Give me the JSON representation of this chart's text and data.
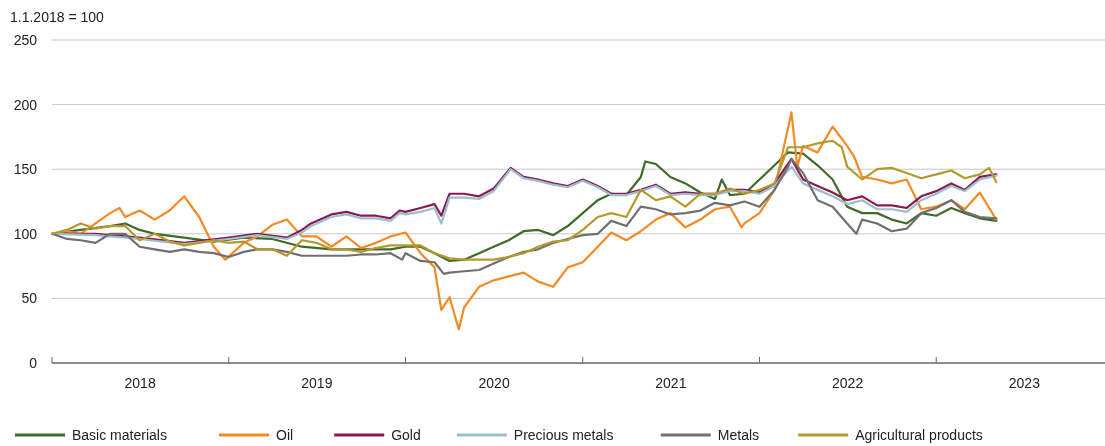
{
  "chart_data": {
    "type": "line",
    "ylabel": "1.1.2018 = 100",
    "xlim": [
      "2018-01-01",
      "2024-01-01"
    ],
    "ylim": [
      0,
      250
    ],
    "yticks": [
      0,
      50,
      100,
      150,
      200,
      250
    ],
    "xticks": [
      {
        "value": "2018-01-01",
        "label": null
      },
      {
        "value": "2018-07-02",
        "label": "2018"
      },
      {
        "value": "2019-01-01",
        "label": null
      },
      {
        "value": "2019-07-02",
        "label": "2019"
      },
      {
        "value": "2020-01-01",
        "label": null
      },
      {
        "value": "2020-07-02",
        "label": "2020"
      },
      {
        "value": "2021-01-01",
        "label": null
      },
      {
        "value": "2021-07-02",
        "label": "2021"
      },
      {
        "value": "2022-01-01",
        "label": null
      },
      {
        "value": "2022-07-02",
        "label": "2022"
      },
      {
        "value": "2023-01-01",
        "label": null
      },
      {
        "value": "2023-07-02",
        "label": "2023"
      },
      {
        "value": "2024-01-01",
        "label": null
      }
    ],
    "grid": "y",
    "legend": "bottom",
    "line_style": "solid",
    "marker": "none",
    "series": [
      {
        "name": "Basic materials",
        "color": "#3f6b2a",
        "x": [
          "2018-01-01",
          "2018-03-01",
          "2018-05-01",
          "2018-06-01",
          "2018-07-01",
          "2018-08-01",
          "2018-10-01",
          "2018-12-01",
          "2019-02-01",
          "2019-04-01",
          "2019-06-01",
          "2019-08-01",
          "2019-10-01",
          "2019-12-01",
          "2020-01-01",
          "2020-02-01",
          "2020-03-01",
          "2020-04-01",
          "2020-05-01",
          "2020-06-01",
          "2020-07-01",
          "2020-08-01",
          "2020-09-01",
          "2020-10-01",
          "2020-11-01",
          "2020-12-01",
          "2021-01-01",
          "2021-02-01",
          "2021-03-01",
          "2021-04-01",
          "2021-05-01",
          "2021-05-10",
          "2021-06-01",
          "2021-07-01",
          "2021-08-01",
          "2021-09-01",
          "2021-10-01",
          "2021-10-15",
          "2021-11-01",
          "2021-12-01",
          "2022-01-01",
          "2022-02-01",
          "2022-03-01",
          "2022-04-01",
          "2022-05-01",
          "2022-06-01",
          "2022-07-01",
          "2022-08-01",
          "2022-09-01",
          "2022-10-01",
          "2022-11-01",
          "2022-12-01",
          "2023-01-01",
          "2023-02-01",
          "2023-03-01",
          "2023-04-01",
          "2023-05-05"
        ],
        "values": [
          100,
          103,
          106,
          108,
          103,
          100,
          97,
          94,
          97,
          96,
          90,
          88,
          88,
          88,
          90,
          90,
          85,
          79,
          80,
          85,
          90,
          95,
          102,
          103,
          99,
          106,
          116,
          126,
          131,
          130,
          144,
          156,
          154,
          144,
          139,
          132,
          127,
          142,
          130,
          131,
          142,
          153,
          163,
          162,
          153,
          142,
          121,
          116,
          116,
          111,
          108,
          116,
          114,
          120,
          116,
          112,
          110
        ]
      },
      {
        "name": "Oil",
        "color": "#f58a25",
        "x": [
          "2018-01-01",
          "2018-02-01",
          "2018-03-01",
          "2018-04-01",
          "2018-05-01",
          "2018-05-20",
          "2018-06-01",
          "2018-07-01",
          "2018-08-01",
          "2018-09-01",
          "2018-10-01",
          "2018-11-01",
          "2018-12-01",
          "2018-12-25",
          "2019-02-01",
          "2019-03-01",
          "2019-04-01",
          "2019-05-01",
          "2019-06-01",
          "2019-07-01",
          "2019-08-01",
          "2019-09-01",
          "2019-10-01",
          "2019-11-01",
          "2019-12-01",
          "2020-01-01",
          "2020-02-01",
          "2020-03-01",
          "2020-03-15",
          "2020-04-01",
          "2020-04-20",
          "2020-05-01",
          "2020-06-01",
          "2020-07-01",
          "2020-08-01",
          "2020-09-01",
          "2020-10-01",
          "2020-11-01",
          "2020-12-01",
          "2021-01-01",
          "2021-02-01",
          "2021-03-01",
          "2021-04-01",
          "2021-05-01",
          "2021-06-01",
          "2021-07-01",
          "2021-08-01",
          "2021-09-01",
          "2021-10-01",
          "2021-11-01",
          "2021-11-25",
          "2021-12-01",
          "2022-01-01",
          "2022-02-01",
          "2022-03-08",
          "2022-03-20",
          "2022-04-01",
          "2022-05-01",
          "2022-06-01",
          "2022-07-01",
          "2022-07-15",
          "2022-08-01",
          "2022-09-01",
          "2022-10-01",
          "2022-11-01",
          "2022-12-01",
          "2023-01-01",
          "2023-02-01",
          "2023-03-01",
          "2023-04-01",
          "2023-05-05"
        ],
        "values": [
          100,
          102,
          100,
          108,
          116,
          120,
          113,
          118,
          111,
          118,
          129,
          113,
          90,
          80,
          93,
          98,
          107,
          111,
          98,
          98,
          90,
          98,
          89,
          93,
          98,
          101,
          85,
          74,
          41,
          51,
          26,
          43,
          59,
          64,
          67,
          70,
          63,
          59,
          74,
          78,
          90,
          101,
          95,
          102,
          111,
          116,
          105,
          111,
          119,
          121,
          105,
          108,
          116,
          134,
          194,
          152,
          168,
          163,
          183,
          168,
          160,
          144,
          142,
          139,
          142,
          119,
          121,
          126,
          119,
          132,
          111
        ]
      },
      {
        "name": "Gold",
        "color": "#8b1a4f",
        "x": [
          "2018-01-01",
          "2018-04-01",
          "2018-07-01",
          "2018-10-01",
          "2019-01-01",
          "2019-03-01",
          "2019-05-01",
          "2019-06-01",
          "2019-06-20",
          "2019-08-01",
          "2019-09-01",
          "2019-10-01",
          "2019-11-01",
          "2019-12-01",
          "2019-12-20",
          "2020-01-01",
          "2020-02-01",
          "2020-03-01",
          "2020-03-15",
          "2020-04-01",
          "2020-05-01",
          "2020-06-01",
          "2020-07-01",
          "2020-08-05",
          "2020-09-01",
          "2020-10-01",
          "2020-11-01",
          "2020-12-01",
          "2021-01-01",
          "2021-02-01",
          "2021-03-01",
          "2021-04-01",
          "2021-05-01",
          "2021-06-01",
          "2021-07-01",
          "2021-08-01",
          "2021-09-01",
          "2021-10-01",
          "2021-11-01",
          "2021-12-01",
          "2022-01-01",
          "2022-02-01",
          "2022-03-08",
          "2022-04-01",
          "2022-05-01",
          "2022-06-01",
          "2022-07-01",
          "2022-08-01",
          "2022-09-01",
          "2022-10-01",
          "2022-11-01",
          "2022-12-01",
          "2023-01-01",
          "2023-02-01",
          "2023-03-01",
          "2023-04-01",
          "2023-05-05"
        ],
        "values": [
          100,
          100,
          97,
          93,
          97,
          100,
          97,
          103,
          108,
          115,
          117,
          114,
          114,
          112,
          118,
          117,
          120,
          123,
          114,
          131,
          131,
          129,
          135,
          151,
          144,
          142,
          139,
          137,
          142,
          137,
          131,
          131,
          134,
          138,
          131,
          132,
          131,
          131,
          134,
          134,
          132,
          139,
          158,
          142,
          137,
          132,
          126,
          129,
          122,
          122,
          120,
          129,
          133,
          139,
          134,
          144,
          146
        ]
      },
      {
        "name": "Precious metals",
        "color": "#9bbfcc",
        "x": [
          "2018-01-01",
          "2018-04-01",
          "2018-07-01",
          "2018-10-01",
          "2019-01-01",
          "2019-03-01",
          "2019-05-01",
          "2019-06-01",
          "2019-06-20",
          "2019-08-01",
          "2019-09-01",
          "2019-10-01",
          "2019-11-01",
          "2019-12-01",
          "2019-12-20",
          "2020-01-01",
          "2020-02-01",
          "2020-03-01",
          "2020-03-15",
          "2020-04-01",
          "2020-05-01",
          "2020-06-01",
          "2020-07-01",
          "2020-08-05",
          "2020-09-01",
          "2020-10-01",
          "2020-11-01",
          "2020-12-01",
          "2021-01-01",
          "2021-02-01",
          "2021-03-01",
          "2021-04-01",
          "2021-05-01",
          "2021-06-01",
          "2021-07-01",
          "2021-08-01",
          "2021-09-01",
          "2021-10-01",
          "2021-11-01",
          "2021-12-01",
          "2022-01-01",
          "2022-02-01",
          "2022-03-08",
          "2022-04-01",
          "2022-05-01",
          "2022-06-01",
          "2022-07-01",
          "2022-08-01",
          "2022-09-01",
          "2022-10-01",
          "2022-11-01",
          "2022-12-01",
          "2023-01-01",
          "2023-02-01",
          "2023-03-01",
          "2023-04-01",
          "2023-05-05"
        ],
        "values": [
          100,
          99,
          96,
          92,
          96,
          99,
          96,
          101,
          106,
          113,
          115,
          112,
          112,
          110,
          116,
          115,
          117,
          120,
          108,
          128,
          128,
          127,
          133,
          150,
          143,
          141,
          138,
          136,
          141,
          136,
          130,
          130,
          133,
          137,
          130,
          131,
          130,
          130,
          133,
          133,
          131,
          137,
          152,
          139,
          134,
          129,
          123,
          126,
          119,
          119,
          117,
          126,
          131,
          137,
          133,
          142,
          145
        ]
      },
      {
        "name": "Metals",
        "color": "#707070",
        "x": [
          "2018-01-01",
          "2018-02-01",
          "2018-03-01",
          "2018-04-01",
          "2018-05-01",
          "2018-06-01",
          "2018-07-01",
          "2018-08-01",
          "2018-09-01",
          "2018-10-01",
          "2018-11-01",
          "2018-12-01",
          "2019-01-01",
          "2019-02-01",
          "2019-03-01",
          "2019-04-01",
          "2019-05-01",
          "2019-06-01",
          "2019-07-01",
          "2019-08-01",
          "2019-09-01",
          "2019-10-01",
          "2019-11-01",
          "2019-12-01",
          "2019-12-25",
          "2020-01-01",
          "2020-02-01",
          "2020-03-01",
          "2020-03-20",
          "2020-04-01",
          "2020-05-01",
          "2020-06-01",
          "2020-07-01",
          "2020-08-01",
          "2020-09-01",
          "2020-10-01",
          "2020-11-01",
          "2020-12-01",
          "2021-01-01",
          "2021-02-01",
          "2021-03-01",
          "2021-04-01",
          "2021-05-01",
          "2021-06-01",
          "2021-07-01",
          "2021-08-01",
          "2021-09-01",
          "2021-10-01",
          "2021-11-01",
          "2021-12-01",
          "2022-01-01",
          "2022-02-01",
          "2022-03-01",
          "2022-03-08",
          "2022-04-01",
          "2022-05-01",
          "2022-06-01",
          "2022-07-01",
          "2022-07-20",
          "2022-08-01",
          "2022-09-01",
          "2022-10-01",
          "2022-11-01",
          "2022-12-01",
          "2023-01-01",
          "2023-02-01",
          "2023-03-01",
          "2023-04-01",
          "2023-05-05"
        ],
        "values": [
          100,
          96,
          95,
          93,
          100,
          100,
          90,
          88,
          86,
          88,
          86,
          85,
          82,
          86,
          88,
          88,
          86,
          83,
          83,
          83,
          83,
          84,
          84,
          85,
          80,
          85,
          79,
          78,
          69,
          70,
          71,
          72,
          77,
          82,
          86,
          88,
          93,
          96,
          99,
          100,
          110,
          106,
          121,
          119,
          115,
          116,
          118,
          124,
          122,
          125,
          121,
          134,
          152,
          158,
          147,
          126,
          121,
          108,
          100,
          111,
          108,
          102,
          104,
          116,
          120,
          126,
          117,
          113,
          112
        ]
      },
      {
        "name": "Agricultural products",
        "color": "#b39a2e",
        "x": [
          "2018-01-01",
          "2018-02-01",
          "2018-03-01",
          "2018-04-01",
          "2018-05-01",
          "2018-06-01",
          "2018-07-01",
          "2018-08-01",
          "2018-09-01",
          "2018-10-01",
          "2018-11-01",
          "2018-12-01",
          "2019-01-01",
          "2019-02-01",
          "2019-03-01",
          "2019-04-01",
          "2019-05-01",
          "2019-06-01",
          "2019-07-01",
          "2019-08-01",
          "2019-09-01",
          "2019-10-01",
          "2019-11-01",
          "2019-12-01",
          "2020-01-01",
          "2020-02-01",
          "2020-03-01",
          "2020-04-01",
          "2020-05-01",
          "2020-06-01",
          "2020-07-01",
          "2020-08-01",
          "2020-09-01",
          "2020-10-01",
          "2020-11-01",
          "2020-12-01",
          "2021-01-01",
          "2021-02-01",
          "2021-03-01",
          "2021-04-01",
          "2021-05-01",
          "2021-06-01",
          "2021-07-01",
          "2021-08-01",
          "2021-09-01",
          "2021-10-01",
          "2021-11-01",
          "2021-12-01",
          "2022-01-01",
          "2022-02-01",
          "2022-03-01",
          "2022-04-01",
          "2022-05-01",
          "2022-06-01",
          "2022-06-20",
          "2022-07-01",
          "2022-08-01",
          "2022-09-01",
          "2022-10-01",
          "2022-11-01",
          "2022-12-01",
          "2023-01-01",
          "2023-02-01",
          "2023-03-01",
          "2023-04-01",
          "2023-04-20",
          "2023-05-05"
        ],
        "values": [
          100,
          103,
          108,
          104,
          106,
          106,
          95,
          100,
          94,
          91,
          93,
          95,
          93,
          94,
          88,
          88,
          83,
          95,
          93,
          88,
          88,
          86,
          89,
          91,
          91,
          91,
          85,
          81,
          80,
          80,
          80,
          82,
          85,
          90,
          94,
          95,
          103,
          113,
          116,
          113,
          134,
          126,
          129,
          121,
          131,
          131,
          135,
          131,
          134,
          139,
          167,
          167,
          170,
          172,
          167,
          152,
          142,
          150,
          151,
          147,
          143,
          146,
          149,
          143,
          146,
          151,
          140
        ]
      }
    ]
  }
}
